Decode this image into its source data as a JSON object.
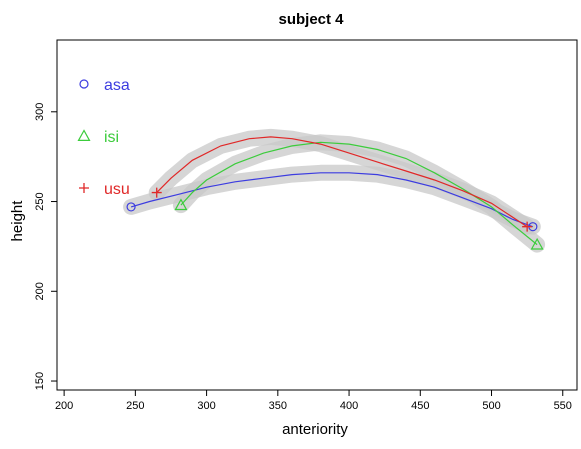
{
  "chart_data": {
    "type": "line",
    "title": "subject 4",
    "xlabel": "anteriority",
    "ylabel": "height",
    "xlim": [
      195,
      560
    ],
    "ylim": [
      145,
      340
    ],
    "xticks": [
      200,
      250,
      300,
      350,
      400,
      450,
      500,
      550
    ],
    "yticks": [
      150,
      200,
      250,
      300
    ],
    "grid": false,
    "legend_position": "top-left",
    "confidence_bands": true,
    "series": [
      {
        "name": "asa",
        "marker": "circle",
        "color": "#3c3ce0",
        "start": [
          247,
          247
        ],
        "end": [
          529,
          236
        ],
        "points": [
          [
            247,
            247
          ],
          [
            260,
            250
          ],
          [
            280,
            254
          ],
          [
            300,
            258
          ],
          [
            320,
            261
          ],
          [
            340,
            263
          ],
          [
            360,
            265
          ],
          [
            380,
            266
          ],
          [
            400,
            266
          ],
          [
            420,
            265
          ],
          [
            440,
            262
          ],
          [
            460,
            258
          ],
          [
            480,
            252
          ],
          [
            500,
            246
          ],
          [
            515,
            240
          ],
          [
            529,
            236
          ]
        ]
      },
      {
        "name": "isi",
        "marker": "triangle",
        "color": "#3ccc3c",
        "start": [
          282,
          248
        ],
        "end": [
          532,
          226
        ],
        "points": [
          [
            282,
            248
          ],
          [
            290,
            255
          ],
          [
            300,
            262
          ],
          [
            320,
            271
          ],
          [
            340,
            277
          ],
          [
            360,
            281
          ],
          [
            380,
            283
          ],
          [
            400,
            282
          ],
          [
            420,
            279
          ],
          [
            440,
            274
          ],
          [
            460,
            266
          ],
          [
            480,
            257
          ],
          [
            500,
            247
          ],
          [
            515,
            237
          ],
          [
            532,
            226
          ]
        ]
      },
      {
        "name": "usu",
        "marker": "plus",
        "color": "#e02828",
        "start": [
          265,
          255
        ],
        "end": [
          525,
          236
        ],
        "points": [
          [
            265,
            255
          ],
          [
            275,
            263
          ],
          [
            290,
            273
          ],
          [
            310,
            281
          ],
          [
            330,
            285
          ],
          [
            345,
            286
          ],
          [
            360,
            285
          ],
          [
            380,
            282
          ],
          [
            400,
            277
          ],
          [
            420,
            272
          ],
          [
            440,
            267
          ],
          [
            460,
            262
          ],
          [
            480,
            256
          ],
          [
            500,
            249
          ],
          [
            525,
            236
          ]
        ]
      }
    ]
  }
}
